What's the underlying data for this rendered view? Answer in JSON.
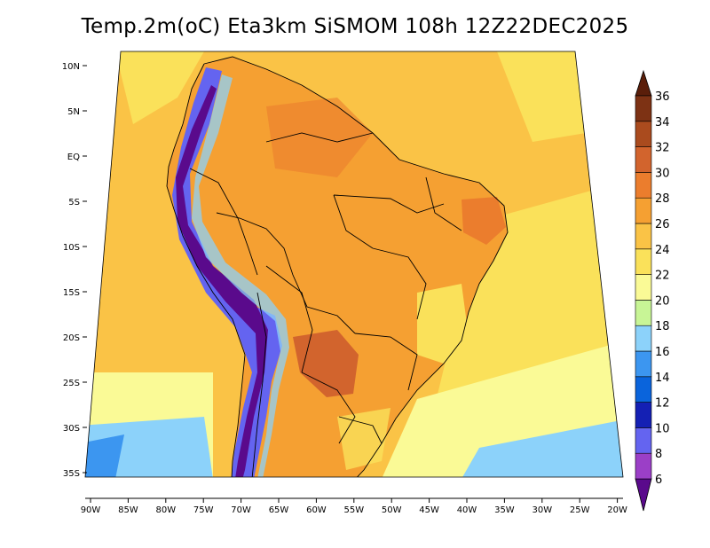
{
  "title": "Temp.2m(oC) Eta3km SiSMOM 108h 12Z22DEC2025",
  "lat_labels": [
    "10N",
    "5N",
    "EQ",
    "5S",
    "10S",
    "15S",
    "20S",
    "25S",
    "30S",
    "35S"
  ],
  "lon_labels": [
    "90W",
    "85W",
    "80W",
    "75W",
    "70W",
    "65W",
    "60W",
    "55W",
    "50W",
    "45W",
    "40W",
    "35W",
    "30W",
    "25W",
    "20W"
  ],
  "colorbar": {
    "levels": [
      "6",
      "8",
      "10",
      "12",
      "14",
      "16",
      "18",
      "20",
      "22",
      "24",
      "26",
      "28",
      "30",
      "32",
      "34",
      "36"
    ],
    "colors": [
      "#5a0a8c",
      "#9b3fc7",
      "#6464f0",
      "#1420b4",
      "#0a64dc",
      "#3c96f0",
      "#8cd2fa",
      "#c8f596",
      "#fafa96",
      "#fae15a",
      "#fac346",
      "#f5a032",
      "#eb7d2d",
      "#d2642d",
      "#aa4b1e",
      "#7d3214",
      "#5a1e0a"
    ]
  },
  "map_colors": {
    "ocean_warm": "#fac346",
    "ocean_mild": "#fae15a",
    "ocean_cool": "#fafa96",
    "ocean_cold": "#8cd2fa",
    "land_base": "#f5a032",
    "land_hot": "#d2642d",
    "land_cool": "#fae15a",
    "andes_cold": "#9b3fc7",
    "andes_blue": "#6464f0",
    "andes_deep": "#5a0a8c"
  }
}
